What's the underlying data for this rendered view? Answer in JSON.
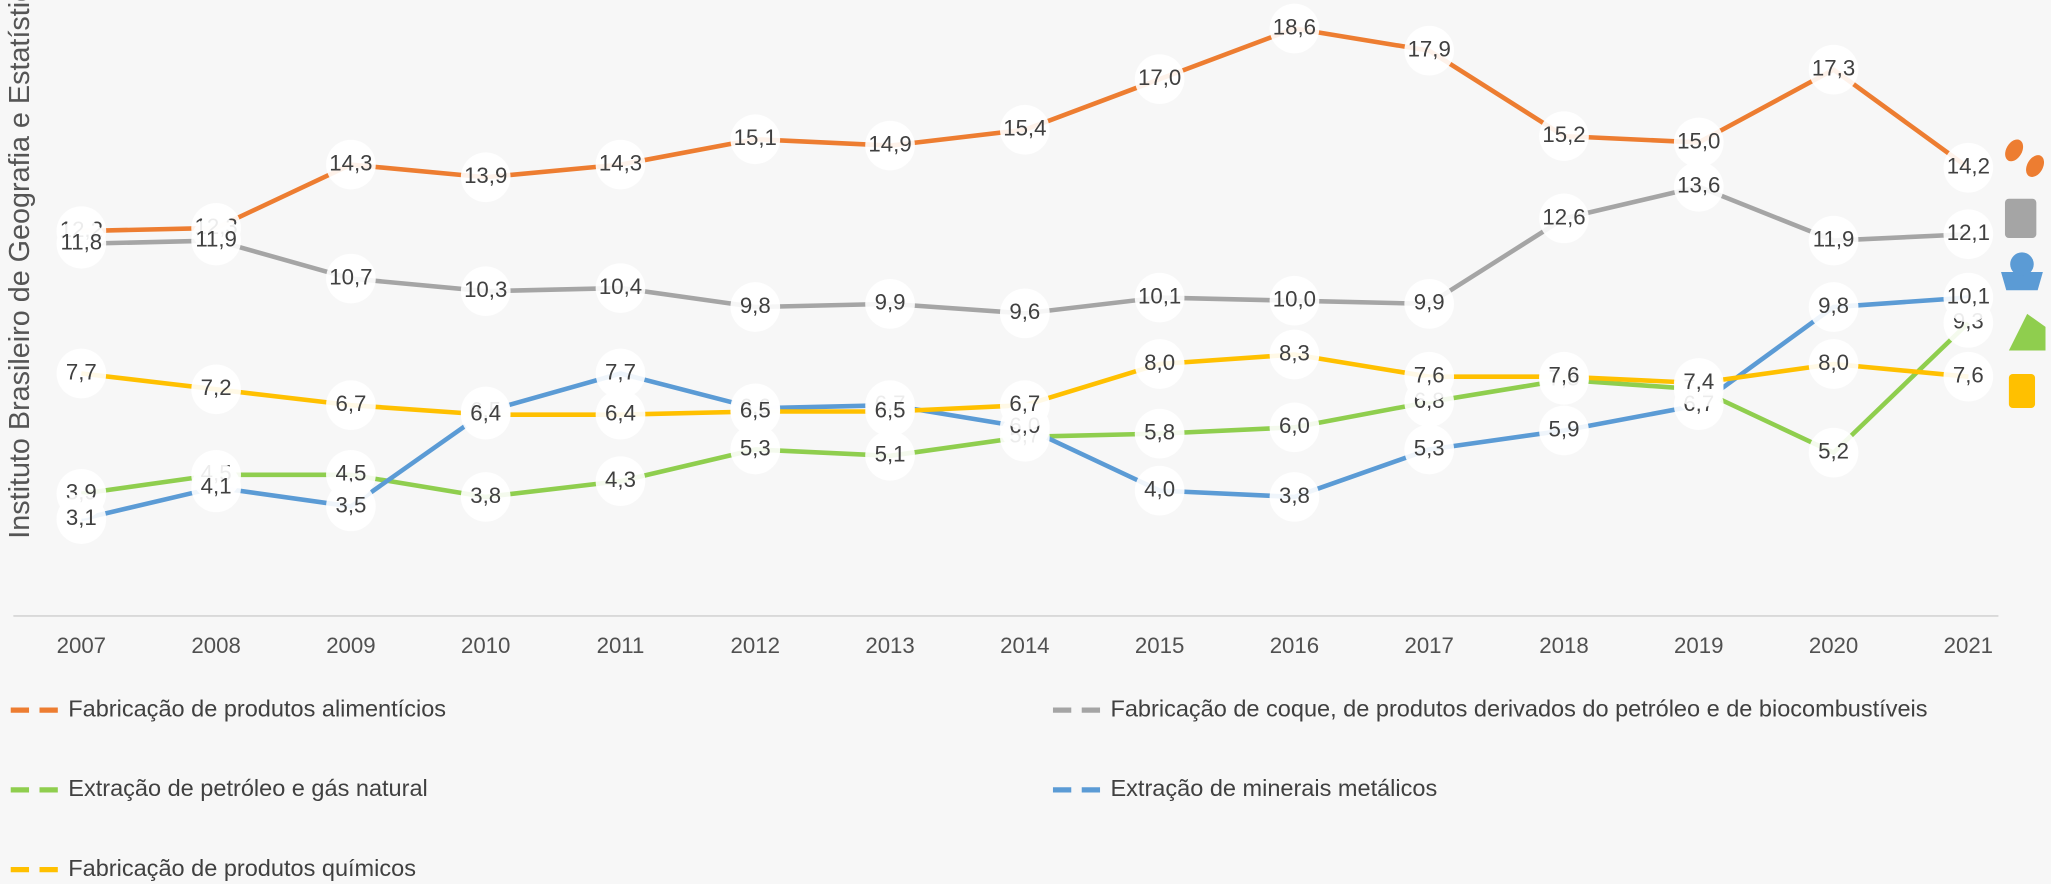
{
  "chart_data": {
    "type": "line",
    "source": "Instituto Brasileiro de Geografia e Estatística",
    "categories": [
      "2007",
      "2008",
      "2009",
      "2010",
      "2011",
      "2012",
      "2013",
      "2014",
      "2015",
      "2016",
      "2017",
      "2018",
      "2019",
      "2020",
      "2021"
    ],
    "ylim": [
      0,
      19.5
    ],
    "series": [
      {
        "name": "Fabricação de produtos alimentícios",
        "color": "#ed7d31",
        "values": [
          12.2,
          12.3,
          14.3,
          13.9,
          14.3,
          15.1,
          14.9,
          15.4,
          17.0,
          18.6,
          17.9,
          15.2,
          15.0,
          17.3,
          14.2
        ],
        "value_labels": [
          "12,2",
          "12,3",
          "14,3",
          "13,9",
          "14,3",
          "15,1",
          "14,9",
          "15,4",
          "17,0",
          "18,6",
          "17,9",
          "15,2",
          "15,0",
          "17,3",
          "14,2"
        ]
      },
      {
        "name": "Fabricação de coque, de produtos derivados do petróleo e de biocombustíveis",
        "color": "#a5a5a5",
        "values": [
          11.8,
          11.9,
          10.7,
          10.3,
          10.4,
          9.8,
          9.9,
          9.6,
          10.1,
          10.0,
          9.9,
          12.6,
          13.6,
          11.9,
          12.1
        ],
        "value_labels": [
          "11,8",
          "11,9",
          "10,7",
          "10,3",
          "10,4",
          "9,8",
          "9,9",
          "9,6",
          "10,1",
          "10,0",
          "9,9",
          "12,6",
          "13,6",
          "11,9",
          "12,1"
        ]
      },
      {
        "name": "Extração de petróleo e gás natural",
        "color": "#8fce4e",
        "values": [
          3.9,
          4.5,
          4.5,
          3.8,
          4.3,
          5.3,
          5.1,
          5.7,
          5.8,
          6.0,
          6.8,
          7.5,
          7.2,
          5.2,
          9.3
        ],
        "value_labels": [
          "3,9",
          "4,5",
          "4,5",
          "3,8",
          "4,3",
          "5,3",
          "5,1",
          "5,7",
          "5,8",
          "6,0",
          "6,8",
          "7,5",
          "7,2",
          "5,2",
          "9,3"
        ]
      },
      {
        "name": "Extração de minerais metálicos",
        "color": "#5b9bd5",
        "values": [
          3.1,
          4.1,
          3.5,
          6.5,
          7.7,
          6.6,
          6.7,
          6.0,
          4.0,
          3.8,
          5.3,
          5.9,
          6.7,
          9.8,
          10.1
        ],
        "value_labels": [
          "3,1",
          "4,1",
          "3,5",
          "6,5",
          "7,7",
          "6,6",
          "6,7",
          "6,0",
          "4,0",
          "3,8",
          "5,3",
          "5,9",
          "6,7",
          "9,8",
          "10,1"
        ]
      },
      {
        "name": "Fabricação de produtos químicos",
        "color": "#ffc000",
        "values": [
          7.7,
          7.2,
          6.7,
          6.4,
          6.4,
          6.5,
          6.5,
          6.7,
          8.0,
          8.3,
          7.6,
          7.6,
          7.4,
          8.0,
          7.6
        ],
        "value_labels": [
          "7,7",
          "7,2",
          "6,7",
          "6,4",
          "6,4",
          "6,5",
          "6,5",
          "6,7",
          "8,0",
          "8,3",
          "7,6",
          "7,6",
          "7,4",
          "8,0",
          "7,6"
        ]
      }
    ]
  }
}
